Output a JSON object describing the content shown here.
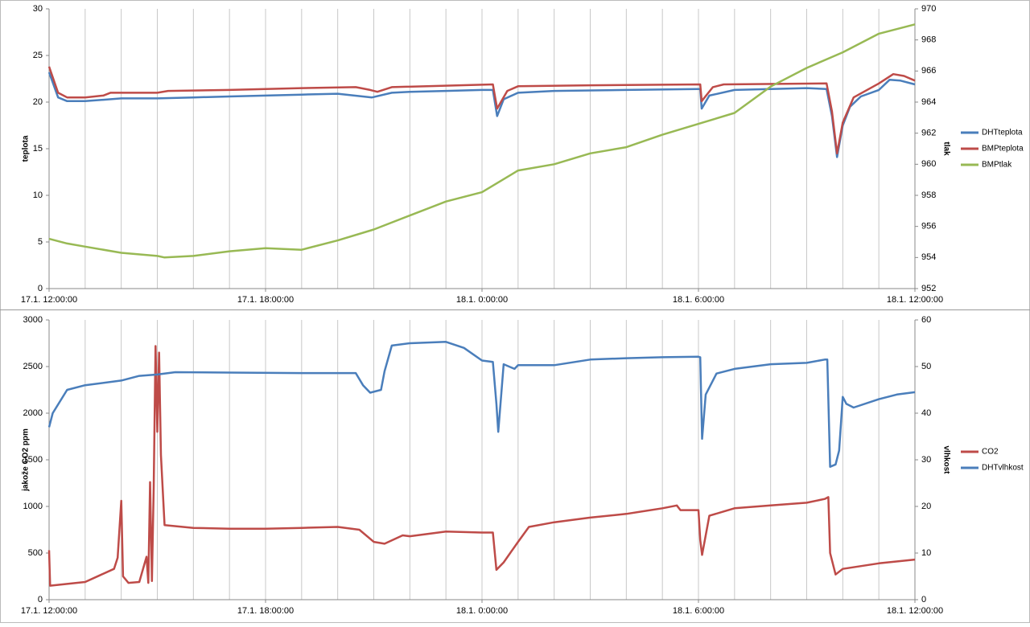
{
  "chart_data": [
    {
      "type": "line",
      "ylabel": "teplota",
      "y2label": "tlak",
      "legend": "right",
      "grid": "x",
      "xlim": [
        0,
        24
      ],
      "xticks": [
        {
          "value": 0,
          "label": "17.1. 12:00:00"
        },
        {
          "value": 6,
          "label": "17.1. 18:00:00"
        },
        {
          "value": 12,
          "label": "18.1. 0:00:00"
        },
        {
          "value": 18,
          "label": "18.1. 6:00:00"
        },
        {
          "value": 24,
          "label": "18.1. 12:00:00"
        }
      ],
      "xminorticks": [
        0,
        1,
        2,
        3,
        4,
        5,
        6,
        7,
        8,
        9,
        10,
        11,
        12,
        13,
        14,
        15,
        16,
        17,
        18,
        19,
        20,
        21,
        22,
        23,
        24
      ],
      "ylim": [
        0,
        30
      ],
      "yticks": [
        0,
        5,
        10,
        15,
        20,
        25,
        30
      ],
      "y2lim": [
        952,
        970
      ],
      "y2ticks": [
        952,
        954,
        956,
        958,
        960,
        962,
        964,
        966,
        968,
        970
      ],
      "series": [
        {
          "name": "DHTteplota",
          "color": "#4a7ebb",
          "x": [
            0,
            0.25,
            0.5,
            1,
            2,
            3,
            4,
            5,
            6,
            7,
            8,
            8.95,
            9.5,
            10,
            11,
            12,
            12.3,
            12.42,
            12.6,
            13,
            14,
            16,
            18,
            18.05,
            18.09,
            18.3,
            19,
            20,
            21,
            21.55,
            21.7,
            21.84,
            22,
            22.2,
            22.5,
            23,
            23.3,
            23.6,
            24
          ],
          "values": [
            23.2,
            20.5,
            20.1,
            20.1,
            20.4,
            20.4,
            20.5,
            20.6,
            20.7,
            20.8,
            20.9,
            20.5,
            21.0,
            21.1,
            21.2,
            21.3,
            21.3,
            18.5,
            20.3,
            21.0,
            21.2,
            21.3,
            21.4,
            21.4,
            19.3,
            20.7,
            21.3,
            21.4,
            21.5,
            21.4,
            18.5,
            14.1,
            17.5,
            19.5,
            20.6,
            21.3,
            22.4,
            22.3,
            21.9
          ]
        },
        {
          "name": "BMPteplota",
          "color": "#be4b48",
          "x": [
            0,
            0.25,
            0.5,
            1,
            1.5,
            1.7,
            3,
            3.3,
            5,
            7,
            8.5,
            8.9,
            9.1,
            9.5,
            12.3,
            12.42,
            12.7,
            13,
            15,
            18.05,
            18.09,
            18.4,
            18.7,
            21.55,
            21.7,
            21.84,
            22,
            22.3,
            23,
            23.4,
            23.7,
            24
          ],
          "values": [
            23.8,
            21.0,
            20.5,
            20.5,
            20.7,
            21.0,
            21.0,
            21.2,
            21.3,
            21.5,
            21.6,
            21.3,
            21.1,
            21.6,
            21.9,
            19.3,
            21.2,
            21.7,
            21.8,
            21.9,
            20.1,
            21.6,
            21.9,
            22.0,
            19.0,
            14.5,
            17.8,
            20.5,
            22.0,
            23.0,
            22.8,
            22.3
          ]
        },
        {
          "name": "BMPtlak",
          "color": "#98b954",
          "axis": "y2",
          "x": [
            0,
            0.5,
            1,
            2,
            3,
            3.2,
            4,
            5,
            6,
            7,
            8,
            9,
            10,
            11,
            12,
            13,
            14,
            15,
            16,
            17,
            18,
            19,
            20,
            21,
            22,
            23,
            24
          ],
          "values": [
            955.2,
            954.9,
            954.7,
            954.3,
            954.1,
            954.0,
            954.1,
            954.4,
            954.6,
            954.5,
            955.1,
            955.8,
            956.7,
            957.6,
            958.2,
            959.6,
            960.0,
            960.7,
            961.1,
            961.9,
            962.6,
            963.3,
            965.0,
            966.2,
            967.2,
            968.4,
            969.0
          ]
        }
      ]
    },
    {
      "type": "line",
      "ylabel": "jakože CO2 ppm",
      "y2label": "vlhkost",
      "legend": "right",
      "grid": "x",
      "xlim": [
        0,
        24
      ],
      "xticks": [
        {
          "value": 0,
          "label": "17.1. 12:00:00"
        },
        {
          "value": 6,
          "label": "17.1. 18:00:00"
        },
        {
          "value": 12,
          "label": "18.1. 0:00:00"
        },
        {
          "value": 18,
          "label": "18.1. 6:00:00"
        },
        {
          "value": 24,
          "label": "18.1. 12:00:00"
        }
      ],
      "xminorticks": [
        0,
        1,
        2,
        3,
        4,
        5,
        6,
        7,
        8,
        9,
        10,
        11,
        12,
        13,
        14,
        15,
        16,
        17,
        18,
        19,
        20,
        21,
        22,
        23,
        24
      ],
      "ylim": [
        0,
        3000
      ],
      "yticks": [
        0,
        500,
        1000,
        1500,
        2000,
        2500,
        3000
      ],
      "y2lim": [
        0,
        60
      ],
      "y2ticks": [
        0,
        10,
        20,
        30,
        40,
        50,
        60
      ],
      "series": [
        {
          "name": "CO2",
          "color": "#be4b48",
          "x": [
            0,
            0.03,
            1,
            1.4,
            1.8,
            1.9,
            2.0,
            2.05,
            2.2,
            2.5,
            2.7,
            2.75,
            2.8,
            2.85,
            2.9,
            2.95,
            3.0,
            3.05,
            3.1,
            3.2,
            4,
            5,
            6,
            7,
            8,
            8.6,
            9,
            9.3,
            9.8,
            10,
            11,
            12,
            12.3,
            12.4,
            12.6,
            13,
            13.3,
            14,
            15,
            16,
            17,
            17.4,
            17.5,
            18,
            18.05,
            18.1,
            18.3,
            19,
            20,
            21,
            21.5,
            21.6,
            21.65,
            21.8,
            22,
            23,
            24
          ],
          "values": [
            530,
            150,
            190,
            260,
            330,
            450,
            1060,
            250,
            180,
            190,
            460,
            180,
            1260,
            200,
            1200,
            2720,
            1800,
            2650,
            1550,
            800,
            770,
            760,
            760,
            770,
            780,
            750,
            620,
            600,
            690,
            680,
            730,
            720,
            720,
            320,
            400,
            620,
            780,
            830,
            880,
            920,
            980,
            1010,
            960,
            960,
            640,
            480,
            900,
            980,
            1010,
            1040,
            1080,
            1100,
            500,
            270,
            330,
            390,
            430
          ]
        },
        {
          "name": "DHTvlhkost",
          "color": "#4a7ebb",
          "axis": "y2",
          "x": [
            0,
            0.1,
            0.5,
            1,
            2,
            2.5,
            3,
            3.5,
            5,
            7,
            8.5,
            8.7,
            8.9,
            9.2,
            9.3,
            9.5,
            10,
            11,
            11.5,
            12,
            12.3,
            12.4,
            12.45,
            12.6,
            12.9,
            13,
            14,
            15,
            16,
            17,
            18,
            18.05,
            18.1,
            18.2,
            18.5,
            19,
            20,
            21,
            21.5,
            21.57,
            21.65,
            21.8,
            21.9,
            22,
            22.1,
            22.3,
            23,
            23.5,
            24
          ],
          "values": [
            37,
            40,
            45,
            46,
            47,
            48,
            48.3,
            48.8,
            48.7,
            48.6,
            48.6,
            46,
            44.4,
            45,
            49,
            54.5,
            55,
            55.3,
            54,
            51.3,
            51,
            42,
            36,
            50.5,
            49.5,
            50.3,
            50.3,
            51.5,
            51.8,
            52,
            52.1,
            52,
            34.5,
            44,
            48.5,
            49.5,
            50.5,
            50.8,
            51.5,
            51.5,
            28.5,
            29,
            32,
            43.5,
            42,
            41.2,
            43,
            44,
            44.5
          ]
        }
      ]
    }
  ]
}
